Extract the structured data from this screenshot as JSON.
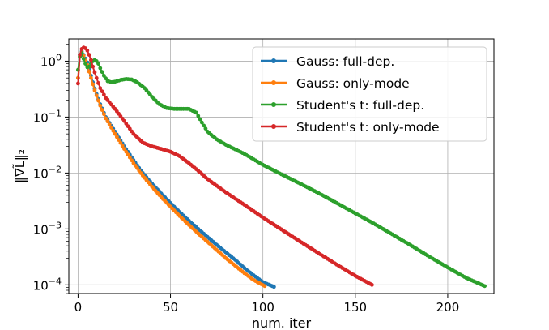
{
  "chart_data": {
    "type": "line",
    "title": "",
    "xlabel": "num. iter",
    "ylabel": "‖∇L̃‖₂",
    "xlim": [
      -5,
      225
    ],
    "ylim": [
      7e-05,
      2.5
    ],
    "yscale": "log",
    "grid": true,
    "legend_position": "top-right",
    "x_ticks": [
      {
        "value": 0,
        "label": "0"
      },
      {
        "value": 50,
        "label": "50"
      },
      {
        "value": 100,
        "label": "100"
      },
      {
        "value": 150,
        "label": "150"
      },
      {
        "value": 200,
        "label": "200"
      }
    ],
    "y_ticks": [
      {
        "value": 1,
        "base": "10",
        "exp": "0"
      },
      {
        "value": 0.1,
        "base": "10",
        "exp": "−1"
      },
      {
        "value": 0.01,
        "base": "10",
        "exp": "−2"
      },
      {
        "value": 0.001,
        "base": "10",
        "exp": "−3"
      },
      {
        "value": 0.0001,
        "base": "10",
        "exp": "−4"
      }
    ],
    "series": [
      {
        "name": "Gauss: full-dep.",
        "color": "#1f77b4",
        "points": [
          [
            0,
            0.5
          ],
          [
            1,
            1.3
          ],
          [
            2,
            1.5
          ],
          [
            3,
            1.3
          ],
          [
            5,
            0.95
          ],
          [
            7,
            0.55
          ],
          [
            9,
            0.32
          ],
          [
            12,
            0.17
          ],
          [
            15,
            0.1
          ],
          [
            20,
            0.055
          ],
          [
            25,
            0.03
          ],
          [
            30,
            0.017
          ],
          [
            35,
            0.01
          ],
          [
            40,
            0.0065
          ],
          [
            45,
            0.0043
          ],
          [
            50,
            0.0029
          ],
          [
            55,
            0.002
          ],
          [
            60,
            0.0014
          ],
          [
            65,
            0.001
          ],
          [
            70,
            0.00072
          ],
          [
            75,
            0.00052
          ],
          [
            80,
            0.00038
          ],
          [
            85,
            0.00028
          ],
          [
            90,
            0.0002
          ],
          [
            95,
            0.000148
          ],
          [
            100,
            0.000112
          ],
          [
            106,
            9.2e-05
          ]
        ]
      },
      {
        "name": "Gauss: only-mode",
        "color": "#ff7f0e",
        "points": [
          [
            0,
            0.5
          ],
          [
            1,
            1.2
          ],
          [
            2,
            1.45
          ],
          [
            3,
            1.25
          ],
          [
            5,
            0.85
          ],
          [
            7,
            0.5
          ],
          [
            9,
            0.3
          ],
          [
            12,
            0.16
          ],
          [
            15,
            0.095
          ],
          [
            20,
            0.05
          ],
          [
            25,
            0.027
          ],
          [
            30,
            0.015
          ],
          [
            35,
            0.009
          ],
          [
            40,
            0.0057
          ],
          [
            45,
            0.0037
          ],
          [
            50,
            0.0025
          ],
          [
            55,
            0.0017
          ],
          [
            60,
            0.00118
          ],
          [
            65,
            0.00083
          ],
          [
            70,
            0.00059
          ],
          [
            75,
            0.00042
          ],
          [
            80,
            0.0003
          ],
          [
            85,
            0.00022
          ],
          [
            90,
            0.000162
          ],
          [
            95,
            0.000122
          ],
          [
            101,
            9.5e-05
          ]
        ]
      },
      {
        "name": "Student's t: full-dep.",
        "color": "#2ca02c",
        "points": [
          [
            0,
            0.7
          ],
          [
            1,
            1.2
          ],
          [
            2,
            1.4
          ],
          [
            3,
            1.1
          ],
          [
            4,
            0.9
          ],
          [
            5,
            0.78
          ],
          [
            6,
            0.8
          ],
          [
            7,
            0.9
          ],
          [
            8,
            1.0
          ],
          [
            9,
            1.05
          ],
          [
            10,
            1.0
          ],
          [
            11,
            0.9
          ],
          [
            12,
            0.75
          ],
          [
            14,
            0.55
          ],
          [
            16,
            0.44
          ],
          [
            18,
            0.42
          ],
          [
            20,
            0.43
          ],
          [
            23,
            0.46
          ],
          [
            26,
            0.48
          ],
          [
            29,
            0.47
          ],
          [
            32,
            0.42
          ],
          [
            36,
            0.33
          ],
          [
            40,
            0.23
          ],
          [
            44,
            0.17
          ],
          [
            48,
            0.145
          ],
          [
            52,
            0.14
          ],
          [
            56,
            0.14
          ],
          [
            60,
            0.14
          ],
          [
            64,
            0.12
          ],
          [
            67,
            0.08
          ],
          [
            70,
            0.055
          ],
          [
            75,
            0.04
          ],
          [
            80,
            0.032
          ],
          [
            90,
            0.022
          ],
          [
            100,
            0.014
          ],
          [
            110,
            0.0095
          ],
          [
            120,
            0.0065
          ],
          [
            130,
            0.0044
          ],
          [
            140,
            0.0029
          ],
          [
            150,
            0.0019
          ],
          [
            160,
            0.00125
          ],
          [
            170,
            0.0008
          ],
          [
            180,
            0.00051
          ],
          [
            190,
            0.00032
          ],
          [
            200,
            0.000205
          ],
          [
            210,
            0.000133
          ],
          [
            220,
            9.5e-05
          ]
        ]
      },
      {
        "name": "Student's t: only-mode",
        "color": "#d62728",
        "points": [
          [
            0,
            0.4
          ],
          [
            1,
            1.3
          ],
          [
            2,
            1.65
          ],
          [
            3,
            1.75
          ],
          [
            4,
            1.7
          ],
          [
            5,
            1.55
          ],
          [
            6,
            1.3
          ],
          [
            7,
            1.05
          ],
          [
            8,
            0.8
          ],
          [
            10,
            0.5
          ],
          [
            12,
            0.33
          ],
          [
            15,
            0.22
          ],
          [
            20,
            0.14
          ],
          [
            25,
            0.085
          ],
          [
            30,
            0.05
          ],
          [
            35,
            0.035
          ],
          [
            40,
            0.03
          ],
          [
            45,
            0.027
          ],
          [
            50,
            0.024
          ],
          [
            55,
            0.02
          ],
          [
            60,
            0.015
          ],
          [
            65,
            0.011
          ],
          [
            70,
            0.0078
          ],
          [
            80,
            0.0045
          ],
          [
            90,
            0.0027
          ],
          [
            100,
            0.0016
          ],
          [
            110,
            0.00098
          ],
          [
            120,
            0.0006
          ],
          [
            130,
            0.00037
          ],
          [
            140,
            0.00023
          ],
          [
            150,
            0.000145
          ],
          [
            159,
            0.0001
          ]
        ]
      }
    ]
  }
}
